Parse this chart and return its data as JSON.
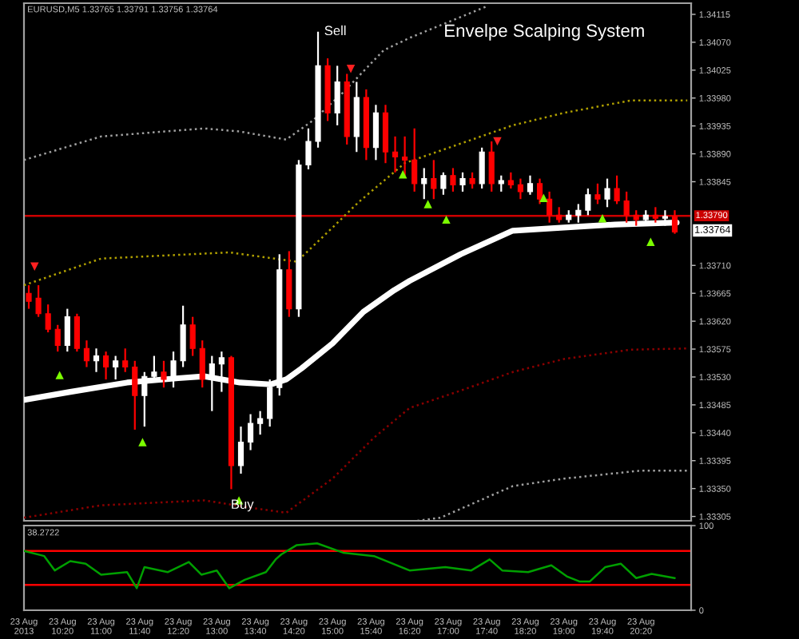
{
  "chart_data": [
    {
      "type": "candlestick",
      "title": "Envelpe Scalping System",
      "annotations": [
        "EURUSD,M5 1.33765 1.33791 1.33756 1.33764",
        "Sell",
        "Buy",
        "1.33764"
      ],
      "x": [
        "2013-08-23T09:45",
        "2013-08-23T09:55",
        "2013-08-23T10:05",
        "2013-08-23T10:15",
        "2013-08-23T10:25",
        "2013-08-23T10:35",
        "2013-08-23T10:45",
        "2013-08-23T10:55",
        "2013-08-23T11:05",
        "2013-08-23T11:15",
        "2013-08-23T11:25",
        "2013-08-23T11:35",
        "2013-08-23T11:45",
        "2013-08-23T11:55",
        "2013-08-23T12:05",
        "2013-08-23T12:15",
        "2013-08-23T12:25",
        "2013-08-23T12:35",
        "2013-08-23T12:45",
        "2013-08-23T12:55",
        "2013-08-23T13:05",
        "2013-08-23T13:15",
        "2013-08-23T13:25",
        "2013-08-23T13:35",
        "2013-08-23T13:45",
        "2013-08-23T13:55",
        "2013-08-23T14:05",
        "2013-08-23T14:15",
        "2013-08-23T14:25",
        "2013-08-23T14:35",
        "2013-08-23T14:45",
        "2013-08-23T14:55",
        "2013-08-23T15:05",
        "2013-08-23T15:15",
        "2013-08-23T15:25",
        "2013-08-23T15:35",
        "2013-08-23T15:45",
        "2013-08-23T15:55",
        "2013-08-23T16:05",
        "2013-08-23T16:15",
        "2013-08-23T16:25",
        "2013-08-23T16:35",
        "2013-08-23T16:45",
        "2013-08-23T16:55",
        "2013-08-23T17:05",
        "2013-08-23T17:15",
        "2013-08-23T17:25",
        "2013-08-23T17:35",
        "2013-08-23T17:45",
        "2013-08-23T17:55",
        "2013-08-23T18:05",
        "2013-08-23T18:15",
        "2013-08-23T18:25",
        "2013-08-23T18:35",
        "2013-08-23T18:45",
        "2013-08-23T18:55",
        "2013-08-23T19:05",
        "2013-08-23T19:15",
        "2013-08-23T19:25",
        "2013-08-23T19:35",
        "2013-08-23T19:45",
        "2013-08-23T19:55",
        "2013-08-23T20:05",
        "2013-08-23T20:15",
        "2013-08-23T20:25",
        "2013-08-23T20:35",
        "2013-08-23T20:45",
        "2013-08-23T20:55"
      ],
      "ohlc": [
        [
          1.33665,
          1.33678,
          1.3364,
          1.33652
        ],
        [
          1.33657,
          1.33678,
          1.33627,
          1.33632
        ],
        [
          1.33632,
          1.33647,
          1.33602,
          1.33607
        ],
        [
          1.33607,
          1.33614,
          1.33571,
          1.33581
        ],
        [
          1.33581,
          1.3364,
          1.33571,
          1.33627
        ],
        [
          1.33627,
          1.33632,
          1.33571,
          1.33576
        ],
        [
          1.33576,
          1.33589,
          1.33546,
          1.33556
        ],
        [
          1.33556,
          1.33576,
          1.33538,
          1.33564
        ],
        [
          1.33564,
          1.33571,
          1.33526,
          1.33546
        ],
        [
          1.33546,
          1.33564,
          1.33526,
          1.33556
        ],
        [
          1.33556,
          1.33576,
          1.33538,
          1.33546
        ],
        [
          1.33546,
          1.33556,
          1.33445,
          1.335
        ],
        [
          1.335,
          1.33538,
          1.3345,
          1.33531
        ],
        [
          1.33531,
          1.33564,
          1.33521,
          1.33538
        ],
        [
          1.33538,
          1.33556,
          1.33513,
          1.33526
        ],
        [
          1.33526,
          1.33571,
          1.33513,
          1.33556
        ],
        [
          1.33556,
          1.33645,
          1.33546,
          1.33614
        ],
        [
          1.33614,
          1.33627,
          1.33564,
          1.33576
        ],
        [
          1.33576,
          1.33589,
          1.33513,
          1.33526
        ],
        [
          1.33526,
          1.33564,
          1.33475,
          1.33551
        ],
        [
          1.33551,
          1.33571,
          1.33506,
          1.33561
        ],
        [
          1.33561,
          1.33564,
          1.33349,
          1.33387
        ],
        [
          1.33387,
          1.3345,
          1.33374,
          1.33425
        ],
        [
          1.33425,
          1.3347,
          1.33412,
          1.33455
        ],
        [
          1.33455,
          1.33475,
          1.33437,
          1.33463
        ],
        [
          1.33463,
          1.33526,
          1.3345,
          1.33513
        ],
        [
          1.33513,
          1.33728,
          1.335,
          1.33703
        ],
        [
          1.33703,
          1.33733,
          1.33627,
          1.3364
        ],
        [
          1.3364,
          1.3388,
          1.33627,
          1.33872
        ],
        [
          1.33872,
          1.33931,
          1.33865,
          1.3391
        ],
        [
          1.3391,
          1.34087,
          1.339,
          1.34032
        ],
        [
          1.34032,
          1.34044,
          1.33943,
          1.33956
        ],
        [
          1.33956,
          1.34032,
          1.33936,
          1.34006
        ],
        [
          1.34006,
          1.34019,
          1.33905,
          1.33918
        ],
        [
          1.33918,
          1.34006,
          1.33893,
          1.33981
        ],
        [
          1.33981,
          1.33994,
          1.3388,
          1.339
        ],
        [
          1.339,
          1.33969,
          1.3388,
          1.33956
        ],
        [
          1.33956,
          1.33969,
          1.33875,
          1.33893
        ],
        [
          1.33893,
          1.33918,
          1.3386,
          1.33885
        ],
        [
          1.33885,
          1.33918,
          1.33855,
          1.3388
        ],
        [
          1.3388,
          1.33931,
          1.33829,
          1.33842
        ],
        [
          1.33842,
          1.33867,
          1.33817,
          1.3385
        ],
        [
          1.3385,
          1.3388,
          1.33817,
          1.33834
        ],
        [
          1.33834,
          1.3386,
          1.33824,
          1.33855
        ],
        [
          1.33855,
          1.33867,
          1.33829,
          1.3384
        ],
        [
          1.3384,
          1.3386,
          1.33829,
          1.3385
        ],
        [
          1.3385,
          1.3386,
          1.33834,
          1.33842
        ],
        [
          1.33842,
          1.339,
          1.33834,
          1.33893
        ],
        [
          1.33893,
          1.3391,
          1.33829,
          1.33842
        ],
        [
          1.33842,
          1.33855,
          1.33829,
          1.33847
        ],
        [
          1.33847,
          1.3386,
          1.33834,
          1.3384
        ],
        [
          1.3384,
          1.3385,
          1.33817,
          1.33829
        ],
        [
          1.33829,
          1.33855,
          1.33824,
          1.33842
        ],
        [
          1.33842,
          1.3385,
          1.33809,
          1.33817
        ],
        [
          1.33817,
          1.33829,
          1.33779,
          1.33791
        ],
        [
          1.33791,
          1.33804,
          1.33779,
          1.33784
        ],
        [
          1.33784,
          1.33799,
          1.33779,
          1.33791
        ],
        [
          1.33791,
          1.33809,
          1.33779,
          1.33799
        ],
        [
          1.33799,
          1.33834,
          1.33791,
          1.33824
        ],
        [
          1.33824,
          1.33842,
          1.33809,
          1.33817
        ],
        [
          1.33817,
          1.3385,
          1.33804,
          1.33834
        ],
        [
          1.33834,
          1.33855,
          1.33809,
          1.33814
        ],
        [
          1.33814,
          1.33829,
          1.33779,
          1.33791
        ],
        [
          1.33791,
          1.33799,
          1.33774,
          1.33784
        ],
        [
          1.33784,
          1.33799,
          1.33774,
          1.33791
        ],
        [
          1.33791,
          1.33804,
          1.33779,
          1.33786
        ],
        [
          1.33786,
          1.33799,
          1.33774,
          1.33789
        ],
        [
          1.33789,
          1.33799,
          1.33761,
          1.33764
        ]
      ],
      "colors": [
        "#ff0000",
        "#ff0000",
        "#ff0000",
        "#ff0000",
        "#ffffff",
        "#ff0000",
        "#ff0000",
        "#ffffff",
        "#ff0000",
        "#ffffff",
        "#ff0000",
        "#ff0000",
        "#ffffff",
        "#ffffff",
        "#ff0000",
        "#ffffff",
        "#ffffff",
        "#ff0000",
        "#ff0000",
        "#ffffff",
        "#ffffff",
        "#ff0000",
        "#ffffff",
        "#ffffff",
        "#ffffff",
        "#ffffff",
        "#ffffff",
        "#ff0000",
        "#ffffff",
        "#ffffff",
        "#ffffff",
        "#ff0000",
        "#ffffff",
        "#ff0000",
        "#ffffff",
        "#ff0000",
        "#ffffff",
        "#ff0000",
        "#ff0000",
        "#ff0000",
        "#ff0000",
        "#ffffff",
        "#ff0000",
        "#ffffff",
        "#ff0000",
        "#ffffff",
        "#ff0000",
        "#ffffff",
        "#ff0000",
        "#ffffff",
        "#ff0000",
        "#ff0000",
        "#ffffff",
        "#ff0000",
        "#ff0000",
        "#ff0000",
        "#ffffff",
        "#ffffff",
        "#ffffff",
        "#ff0000",
        "#ffffff",
        "#ff0000",
        "#ff0000",
        "#ff0000",
        "#ffffff",
        "#ff0000",
        "#ffffff",
        "#ff0000"
      ],
      "series": [
        {
          "type": "line",
          "color": "#ffffff",
          "line_style": "solid",
          "x": [
            "2013-08-23T09:40",
            "2013-08-23T10:28",
            "2013-08-23T11:27",
            "2013-08-23T12:20",
            "2013-08-23T12:47",
            "2013-08-23T13:24",
            "2013-08-23T13:56",
            "2013-08-23T14:12",
            "2013-08-23T14:28",
            "2013-08-23T15:00",
            "2013-08-23T15:32",
            "2013-08-23T16:04",
            "2013-08-23T16:20",
            "2013-08-23T17:13",
            "2013-08-23T18:07",
            "2013-08-23T19:00",
            "2013-08-23T19:53",
            "2013-08-23T20:57"
          ],
          "values": [
            1.33493,
            1.33506,
            1.33521,
            1.33528,
            1.33531,
            1.33521,
            1.33518,
            1.33526,
            1.33544,
            1.33584,
            1.33635,
            1.3367,
            1.33685,
            1.33728,
            1.33766,
            1.33771,
            1.33776,
            1.33779
          ]
        },
        {
          "type": "line",
          "color": "#b0a000",
          "line_style": "dotted",
          "x": [
            "2013-08-23T09:40",
            "2013-08-23T11:00",
            "2013-08-23T13:13",
            "2013-08-23T14:23",
            "2013-08-23T15:00",
            "2013-08-23T15:27",
            "2013-08-23T16:15",
            "2013-08-23T18:07",
            "2013-08-23T19:00",
            "2013-08-23T20:09",
            "2013-08-23T21:08"
          ],
          "values": [
            1.33678,
            1.33721,
            1.33731,
            1.33716,
            1.33771,
            1.33812,
            1.33875,
            1.33936,
            1.33956,
            1.33976,
            1.33976
          ]
        },
        {
          "type": "line",
          "color": "#8b0000",
          "line_style": "dotted",
          "x": [
            "2013-08-23T09:40",
            "2013-08-23T11:00",
            "2013-08-23T12:47",
            "2013-08-23T13:40",
            "2013-08-23T14:12",
            "2013-08-23T15:00",
            "2013-08-23T15:43",
            "2013-08-23T16:20",
            "2013-08-23T17:13",
            "2013-08-23T18:07",
            "2013-08-23T19:00",
            "2013-08-23T20:09",
            "2013-08-23T21:08"
          ],
          "values": [
            1.33303,
            1.33323,
            1.33331,
            1.33318,
            1.33311,
            1.33366,
            1.33432,
            1.3348,
            1.33508,
            1.33538,
            1.33559,
            1.33574,
            1.33576
          ]
        },
        {
          "type": "line",
          "color": "#a0a0a0",
          "line_style": "dotted",
          "x": [
            "2013-08-23T09:40",
            "2013-08-23T11:00",
            "2013-08-23T12:47",
            "2013-08-23T13:24",
            "2013-08-23T14:12",
            "2013-08-23T14:39",
            "2013-08-23T15:11",
            "2013-08-23T15:53",
            "2013-08-23T16:20",
            "2013-08-23T17:40"
          ],
          "values": [
            1.3388,
            1.33918,
            1.33931,
            1.33926,
            1.33913,
            1.33943,
            1.33989,
            1.34057,
            1.34077,
            1.34128
          ]
        },
        {
          "type": "line",
          "color": "#a0a0a0",
          "line_style": "dotted",
          "x": [
            "2013-08-23T16:28",
            "2013-08-23T16:52",
            "2013-08-23T18:07",
            "2013-08-23T19:00",
            "2013-08-23T20:20",
            "2013-08-23T21:08"
          ],
          "values": [
            1.33298,
            1.33303,
            1.33354,
            1.33366,
            1.33379,
            1.33379
          ]
        },
        {
          "type": "scatter",
          "color": "#7cfc00",
          "marker": "triangle",
          "x": [
            "2013-08-23T10:17",
            "2013-08-23T11:43",
            "2013-08-23T13:23",
            "2013-08-23T16:13",
            "2013-08-23T16:39",
            "2013-08-23T16:58",
            "2013-08-23T18:39",
            "2013-08-23T19:40",
            "2013-08-23T20:30"
          ],
          "values": [
            1.33533,
            1.33425,
            1.33331,
            1.33857,
            1.33809,
            1.33784,
            1.33819,
            1.33786,
            1.33748
          ]
        },
        {
          "type": "scatter",
          "color": "#ff2020",
          "marker": "triangle_down",
          "x": [
            "2013-08-23T09:51",
            "2013-08-23T15:19",
            "2013-08-23T17:51"
          ],
          "values": [
            1.33708,
            1.34027,
            1.3391
          ]
        }
      ],
      "ref_lines": [
        {
          "axis": "y",
          "value": 1.3379,
          "label": "1.33790",
          "color": "#cc0000"
        }
      ],
      "xlim": [
        "2013-08-23T09:40",
        "2013-08-23T21:12"
      ],
      "ylim": [
        1.33298,
        1.34133
      ],
      "yticks": [
        {
          "value": 1.34115,
          "label": "1.34115"
        },
        {
          "value": 1.3407,
          "label": "1.34070"
        },
        {
          "value": 1.34025,
          "label": "1.34025"
        },
        {
          "value": 1.3398,
          "label": "1.33980"
        },
        {
          "value": 1.33935,
          "label": "1.33935"
        },
        {
          "value": 1.3389,
          "label": "1.33890"
        },
        {
          "value": 1.33845,
          "label": "1.33845"
        },
        {
          "value": 1.3371,
          "label": "1.33710"
        },
        {
          "value": 1.33665,
          "label": "1.33665"
        },
        {
          "value": 1.3362,
          "label": "1.33620"
        },
        {
          "value": 1.33575,
          "label": "1.33575"
        },
        {
          "value": 1.3353,
          "label": "1.33530"
        },
        {
          "value": 1.33485,
          "label": "1.33485"
        },
        {
          "value": 1.3344,
          "label": "1.33440"
        },
        {
          "value": 1.33395,
          "label": "1.33395"
        },
        {
          "value": 1.3335,
          "label": "1.33350"
        },
        {
          "value": 1.33305,
          "label": "1.33305"
        }
      ],
      "tick_labels": "y"
    },
    {
      "type": "line",
      "title": "38.2722",
      "x": [
        "2013-08-23T09:40",
        "2013-08-23T10:01",
        "2013-08-23T10:12",
        "2013-08-23T10:28",
        "2013-08-23T10:44",
        "2013-08-23T11:00",
        "2013-08-23T11:27",
        "2013-08-23T11:37",
        "2013-08-23T11:45",
        "2013-08-23T12:09",
        "2013-08-23T12:31",
        "2013-08-23T12:44",
        "2013-08-23T13:00",
        "2013-08-23T13:13",
        "2013-08-23T13:29",
        "2013-08-23T13:51",
        "2013-08-23T14:01",
        "2013-08-23T14:07",
        "2013-08-23T14:23",
        "2013-08-23T14:44",
        "2013-08-23T15:11",
        "2013-08-23T15:43",
        "2013-08-23T16:20",
        "2013-08-23T16:57",
        "2013-08-23T17:24",
        "2013-08-23T17:43",
        "2013-08-23T17:56",
        "2013-08-23T18:23",
        "2013-08-23T18:47",
        "2013-08-23T19:03",
        "2013-08-23T19:16",
        "2013-08-23T19:27",
        "2013-08-23T19:43",
        "2013-08-23T19:59",
        "2013-08-23T20:15",
        "2013-08-23T20:31",
        "2013-08-23T20:55"
      ],
      "series": [
        {
          "color": "#00a000",
          "line_style": "solid",
          "values": [
            70,
            64,
            47,
            58,
            55,
            42,
            45,
            26,
            51,
            45,
            57,
            42,
            47,
            26,
            36,
            45,
            60,
            66,
            77,
            79,
            68,
            64,
            47,
            51,
            47,
            60,
            47,
            45,
            53,
            40,
            34,
            34,
            51,
            55,
            38,
            43,
            38
          ]
        }
      ],
      "ref_lines": [
        {
          "axis": "y",
          "value": 70,
          "color": "#ff0000"
        },
        {
          "axis": "y",
          "value": 30,
          "color": "#ff0000"
        }
      ],
      "xlim": [
        "2013-08-23T09:40",
        "2013-08-23T21:12"
      ],
      "xticks": [
        {
          "value": "2013-08-23T09:40",
          "label": "23 Aug 2013"
        },
        {
          "value": "2013-08-23T10:20",
          "label": "23 Aug 10:20"
        },
        {
          "value": "2013-08-23T11:00",
          "label": "23 Aug 11:00"
        },
        {
          "value": "2013-08-23T11:40",
          "label": "23 Aug 11:40"
        },
        {
          "value": "2013-08-23T12:20",
          "label": "23 Aug 12:20"
        },
        {
          "value": "2013-08-23T13:00",
          "label": "23 Aug 13:00"
        },
        {
          "value": "2013-08-23T13:40",
          "label": "23 Aug 13:40"
        },
        {
          "value": "2013-08-23T14:20",
          "label": "23 Aug 14:20"
        },
        {
          "value": "2013-08-23T15:00",
          "label": "23 Aug 15:00"
        },
        {
          "value": "2013-08-23T15:40",
          "label": "23 Aug 15:40"
        },
        {
          "value": "2013-08-23T16:20",
          "label": "23 Aug 16:20"
        },
        {
          "value": "2013-08-23T17:00",
          "label": "23 Aug 17:00"
        },
        {
          "value": "2013-08-23T17:40",
          "label": "23 Aug 17:40"
        },
        {
          "value": "2013-08-23T18:20",
          "label": "23 Aug 18:20"
        },
        {
          "value": "2013-08-23T19:00",
          "label": "23 Aug 19:00"
        },
        {
          "value": "2013-08-23T19:40",
          "label": "23 Aug 19:40"
        },
        {
          "value": "2013-08-23T20:20",
          "label": "23 Aug 20:20"
        }
      ],
      "ylim": [
        0,
        100
      ],
      "yticks": [
        0,
        100
      ]
    }
  ]
}
